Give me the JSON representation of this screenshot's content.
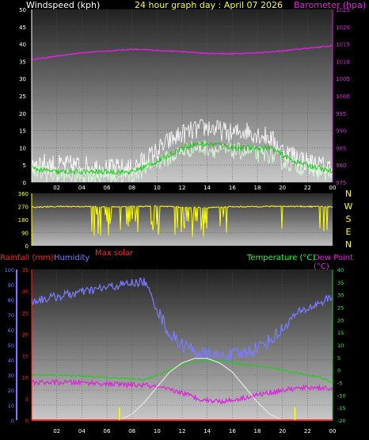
{
  "header": {
    "left_title": "Windspeed (kph)",
    "center_title": "24 hour graph day : April 07 2026",
    "right_title": "Barometer (hpa)"
  },
  "labels": {
    "rainfall": "Rainfall (mm)",
    "humidity": "Humidity",
    "max_solar": "Max solar",
    "temperature": "Temperature (°C)",
    "dew_point": "Dew Point (°C)"
  },
  "colors": {
    "background": "#000000",
    "windspeed": "#ffffff",
    "gust": "#ffffff",
    "wind_avg": "#00cc00",
    "barometer": "#dd22dd",
    "wind_dir": "#ffff00",
    "rainfall": "#ff2222",
    "humidity": "#7b7bff",
    "max_solar": "#ffffff",
    "temperature": "#22cc22",
    "dew_point": "#dd22dd",
    "ticks_solar": "#ffff00"
  },
  "chart_data": [
    {
      "type": "line",
      "panel": "wind_barometer",
      "x_ticks": [
        "02",
        "04",
        "06",
        "08",
        "10",
        "12",
        "14",
        "16",
        "18",
        "20",
        "22",
        "00"
      ],
      "x_range_hours": [
        0,
        24
      ],
      "ylim_left": [
        0,
        50
      ],
      "y_ticks_left": [
        "0",
        "5",
        "10",
        "15",
        "20",
        "25",
        "30",
        "35",
        "40",
        "45",
        "50"
      ],
      "ylabel_left": "Windspeed (kph)",
      "ylim_right": [
        975,
        1025
      ],
      "y_ticks_right": [
        "975",
        "980",
        "985",
        "990",
        "995",
        "1000",
        "1005",
        "1010",
        "1015",
        "1020",
        "1025"
      ],
      "ylabel_right": "Barometer (hpa)",
      "grid": true,
      "series": [
        {
          "name": "Barometer (hpa)",
          "axis": "right",
          "x": [
            0,
            2,
            4,
            6,
            8,
            10,
            12,
            14,
            16,
            18,
            20,
            22,
            24
          ],
          "values": [
            1010.5,
            1011.5,
            1012.5,
            1013,
            1013.5,
            1013.2,
            1012.8,
            1012.3,
            1012.2,
            1012.5,
            1013,
            1013.8,
            1014.5
          ]
        },
        {
          "name": "Wind gust",
          "axis": "left",
          "x": [
            0,
            2,
            4,
            6,
            8,
            10,
            11,
            12,
            13,
            14,
            15,
            16,
            17,
            18,
            19,
            20,
            21,
            22,
            23,
            24
          ],
          "values": [
            6,
            5,
            5,
            4,
            4,
            9,
            12,
            14,
            15,
            16,
            15,
            14,
            15,
            14,
            13,
            9,
            8,
            6,
            5,
            4
          ]
        },
        {
          "name": "Wind speed",
          "axis": "left",
          "x": [
            0,
            2,
            4,
            6,
            8,
            10,
            11,
            12,
            13,
            14,
            15,
            16,
            17,
            18,
            19,
            20,
            21,
            22,
            23,
            24
          ],
          "values": [
            3,
            2,
            2,
            2,
            2,
            6,
            7,
            9,
            10,
            10,
            9,
            9,
            9,
            8,
            8,
            6,
            5,
            4,
            3,
            2
          ]
        },
        {
          "name": "Wind average",
          "axis": "left",
          "x": [
            0,
            2,
            4,
            6,
            8,
            10,
            11,
            12,
            13,
            14,
            15,
            16,
            17,
            18,
            19,
            20,
            21,
            22,
            23,
            24
          ],
          "values": [
            4,
            3,
            3,
            3,
            3,
            6,
            8,
            10,
            11,
            11,
            11,
            10,
            10,
            10,
            10,
            8,
            6,
            5,
            4,
            3
          ]
        }
      ]
    },
    {
      "type": "line",
      "panel": "wind_direction",
      "x_range_hours": [
        0,
        24
      ],
      "ylim": [
        0,
        360
      ],
      "y_ticks": [
        "0",
        "90",
        "180",
        "270",
        "360"
      ],
      "compass": [
        "N",
        "W",
        "S",
        "E",
        "N"
      ],
      "series": [
        {
          "name": "Wind direction",
          "x": [
            0,
            2,
            4,
            6,
            8,
            10,
            12,
            14,
            16,
            18,
            20,
            22,
            24
          ],
          "values": [
            265,
            270,
            270,
            268,
            270,
            272,
            265,
            262,
            268,
            270,
            272,
            270,
            268
          ]
        }
      ]
    },
    {
      "type": "line",
      "panel": "temperature_humidity",
      "x_ticks": [
        "02",
        "04",
        "06",
        "08",
        "10",
        "12",
        "14",
        "16",
        "18",
        "20",
        "22",
        "00"
      ],
      "x_range_hours": [
        0,
        24
      ],
      "ylim_humidity": [
        0,
        100
      ],
      "y_ticks_humidity": [
        "0",
        "10",
        "20",
        "30",
        "40",
        "50",
        "60",
        "70",
        "80",
        "90",
        "100"
      ],
      "ylim_rain": [
        0,
        35
      ],
      "y_ticks_rain": [
        "0",
        "5",
        "10",
        "15",
        "20",
        "25",
        "30",
        "35"
      ],
      "ylim_temp": [
        -20,
        40
      ],
      "y_ticks_temp": [
        "-20",
        "-15",
        "-10",
        "-5",
        "0",
        "5",
        "10",
        "15",
        "20",
        "25",
        "30",
        "35",
        "40"
      ],
      "grid": true,
      "series": [
        {
          "name": "Humidity",
          "axis": "humidity",
          "x": [
            0,
            2,
            4,
            6,
            8,
            9,
            10,
            11,
            12,
            13,
            14,
            15,
            16,
            17,
            18,
            19,
            20,
            21,
            22,
            23,
            24
          ],
          "values": [
            79,
            82,
            85,
            88,
            91,
            92,
            74,
            57,
            50,
            46,
            43,
            42,
            43,
            45,
            48,
            53,
            60,
            70,
            74,
            78,
            82
          ]
        },
        {
          "name": "Temperature (°C)",
          "axis": "temp",
          "x": [
            0,
            2,
            4,
            6,
            8,
            9,
            10,
            11,
            12,
            13,
            14,
            15,
            16,
            17,
            18,
            19,
            20,
            21,
            22,
            23,
            24
          ],
          "values": [
            -2,
            -2,
            -2.5,
            -3,
            -3.5,
            -4,
            -2,
            0,
            2,
            3,
            3.5,
            3.5,
            3,
            2,
            1.5,
            1,
            0,
            -1,
            -2,
            -3,
            -5
          ]
        },
        {
          "name": "Dew Point (°C)",
          "axis": "temp",
          "x": [
            0,
            2,
            4,
            6,
            8,
            9,
            10,
            11,
            12,
            13,
            14,
            15,
            16,
            17,
            18,
            19,
            20,
            21,
            22,
            23,
            24
          ],
          "values": [
            -5,
            -5,
            -5,
            -5.5,
            -6,
            -6,
            -7,
            -8,
            -9,
            -11,
            -12,
            -12.5,
            -12,
            -11,
            -10,
            -9,
            -8,
            -7.5,
            -7,
            -7,
            -7.5
          ]
        },
        {
          "name": "Max solar",
          "axis": "humidity",
          "x": [
            7,
            8,
            9,
            10,
            11,
            12,
            13,
            14,
            15,
            16,
            17,
            18,
            19,
            20,
            21
          ],
          "values": [
            0,
            4,
            12,
            22,
            32,
            38,
            41,
            41,
            38,
            32,
            22,
            12,
            4,
            0,
            0
          ]
        },
        {
          "name": "Rainfall (mm)",
          "axis": "rain",
          "x": [
            0,
            24
          ],
          "values": [
            0,
            0
          ]
        }
      ],
      "solar_ticks_hours": [
        7,
        21
      ]
    }
  ]
}
